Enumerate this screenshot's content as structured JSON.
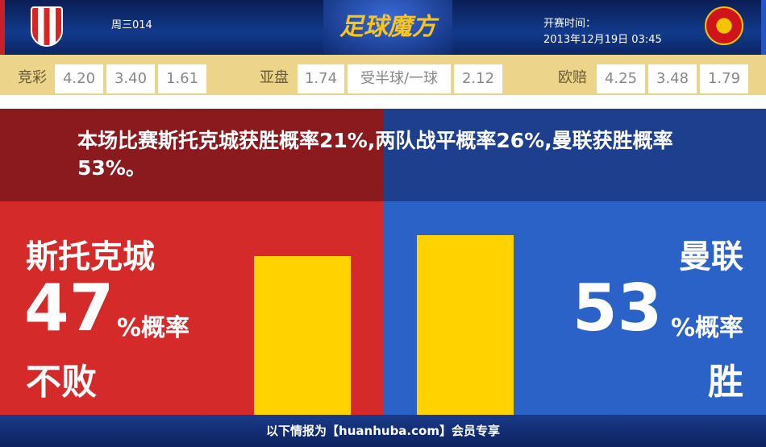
{
  "header": {
    "match_no": "周三014",
    "logo_text": "足球魔方",
    "time_label": "开赛时间：",
    "time_value": "2013年12月19日 03:45",
    "home_crest": "stoke-city-crest",
    "away_crest": "manchester-united-crest"
  },
  "odds": {
    "jc_label": "竞彩",
    "jc": [
      "4.20",
      "3.40",
      "1.61"
    ],
    "yp_label": "亚盘",
    "yp": [
      "1.74",
      "受半球/一球",
      "2.12"
    ],
    "op_label": "欧赔",
    "op": [
      "4.25",
      "3.48",
      "1.79"
    ]
  },
  "summary": "本场比赛斯托克城获胜概率21%,两队战平概率26%,曼联获胜概率53%。",
  "home": {
    "name": "斯托克城",
    "percent": "47",
    "unit": "%概率",
    "outcome": "不败",
    "bar_fraction": 0.47
  },
  "away": {
    "name": "曼联",
    "percent": "53",
    "unit": "%概率",
    "outcome": "胜",
    "bar_fraction": 0.53
  },
  "footer": "以下情报为【huanhuba.com】会员专享",
  "colors": {
    "home": "#d42a2a",
    "away": "#2a62c8",
    "bar": "#ffd200",
    "odds_bg": "#ecd48a"
  }
}
